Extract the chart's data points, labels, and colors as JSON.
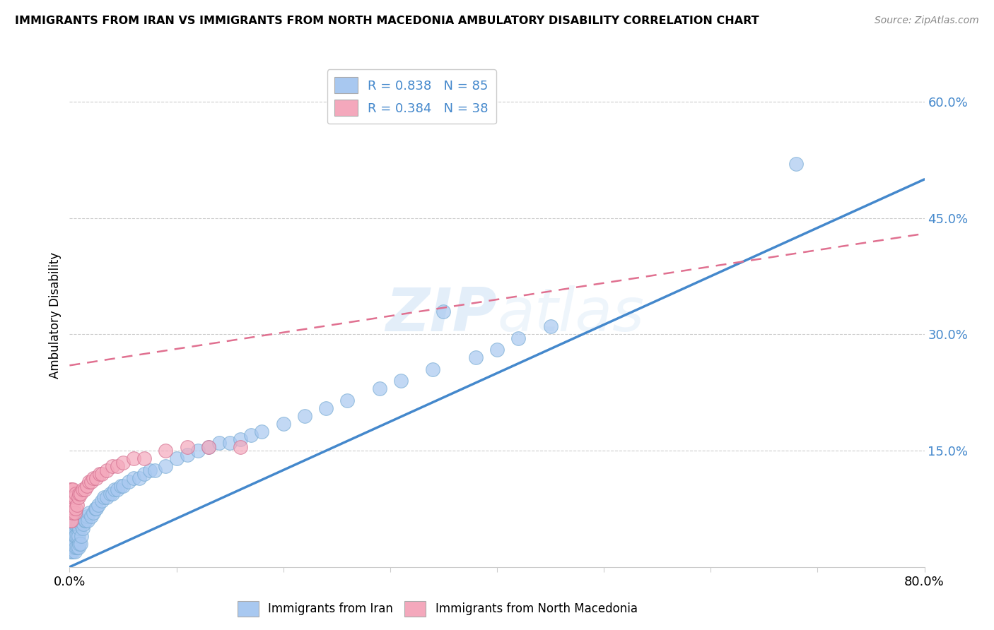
{
  "title": "IMMIGRANTS FROM IRAN VS IMMIGRANTS FROM NORTH MACEDONIA AMBULATORY DISABILITY CORRELATION CHART",
  "source": "Source: ZipAtlas.com",
  "ylabel": "Ambulatory Disability",
  "xlim": [
    0.0,
    0.8
  ],
  "ylim": [
    0.0,
    0.65
  ],
  "xticks": [
    0.0,
    0.1,
    0.2,
    0.3,
    0.4,
    0.5,
    0.6,
    0.7,
    0.8
  ],
  "ytick_right_labels": [
    "15.0%",
    "30.0%",
    "45.0%",
    "60.0%"
  ],
  "ytick_right_vals": [
    0.15,
    0.3,
    0.45,
    0.6
  ],
  "iran_color": "#a8c8f0",
  "iran_edge_color": "#7aadd4",
  "iran_line_color": "#4488cc",
  "north_mac_color": "#f4a8bc",
  "north_mac_edge_color": "#d47090",
  "north_mac_line_color": "#e07090",
  "R_iran": 0.838,
  "N_iran": 85,
  "R_north_mac": 0.384,
  "N_north_mac": 38,
  "watermark": "ZIPatlas",
  "iran_line_x0": 0.0,
  "iran_line_y0": 0.0,
  "iran_line_x1": 0.8,
  "iran_line_y1": 0.5,
  "north_mac_line_x0": 0.0,
  "north_mac_line_y0": 0.26,
  "north_mac_line_x1": 0.8,
  "north_mac_line_y1": 0.43,
  "iran_scatter_x": [
    0.001,
    0.001,
    0.001,
    0.001,
    0.002,
    0.002,
    0.002,
    0.002,
    0.002,
    0.003,
    0.003,
    0.003,
    0.003,
    0.004,
    0.004,
    0.004,
    0.004,
    0.005,
    0.005,
    0.005,
    0.005,
    0.006,
    0.006,
    0.006,
    0.007,
    0.007,
    0.007,
    0.008,
    0.008,
    0.008,
    0.009,
    0.009,
    0.01,
    0.01,
    0.011,
    0.012,
    0.013,
    0.014,
    0.015,
    0.016,
    0.017,
    0.018,
    0.02,
    0.022,
    0.024,
    0.025,
    0.027,
    0.03,
    0.032,
    0.035,
    0.038,
    0.04,
    0.042,
    0.045,
    0.048,
    0.05,
    0.055,
    0.06,
    0.065,
    0.07,
    0.075,
    0.08,
    0.09,
    0.1,
    0.11,
    0.12,
    0.13,
    0.14,
    0.15,
    0.16,
    0.17,
    0.18,
    0.2,
    0.22,
    0.24,
    0.26,
    0.29,
    0.31,
    0.34,
    0.38,
    0.4,
    0.42,
    0.45,
    0.35,
    0.68
  ],
  "iran_scatter_y": [
    0.02,
    0.03,
    0.04,
    0.055,
    0.02,
    0.03,
    0.04,
    0.055,
    0.07,
    0.02,
    0.03,
    0.04,
    0.055,
    0.025,
    0.035,
    0.045,
    0.06,
    0.02,
    0.03,
    0.04,
    0.055,
    0.025,
    0.04,
    0.055,
    0.025,
    0.04,
    0.055,
    0.025,
    0.04,
    0.055,
    0.03,
    0.05,
    0.03,
    0.055,
    0.04,
    0.05,
    0.055,
    0.06,
    0.06,
    0.065,
    0.06,
    0.07,
    0.065,
    0.07,
    0.075,
    0.075,
    0.08,
    0.085,
    0.09,
    0.09,
    0.095,
    0.095,
    0.1,
    0.1,
    0.105,
    0.105,
    0.11,
    0.115,
    0.115,
    0.12,
    0.125,
    0.125,
    0.13,
    0.14,
    0.145,
    0.15,
    0.155,
    0.16,
    0.16,
    0.165,
    0.17,
    0.175,
    0.185,
    0.195,
    0.205,
    0.215,
    0.23,
    0.24,
    0.255,
    0.27,
    0.28,
    0.295,
    0.31,
    0.33,
    0.52
  ],
  "north_mac_scatter_x": [
    0.001,
    0.001,
    0.001,
    0.002,
    0.002,
    0.002,
    0.003,
    0.003,
    0.003,
    0.004,
    0.004,
    0.005,
    0.005,
    0.006,
    0.006,
    0.007,
    0.008,
    0.009,
    0.01,
    0.012,
    0.014,
    0.016,
    0.018,
    0.02,
    0.022,
    0.025,
    0.028,
    0.03,
    0.035,
    0.04,
    0.045,
    0.05,
    0.06,
    0.07,
    0.09,
    0.11,
    0.13,
    0.16
  ],
  "north_mac_scatter_y": [
    0.06,
    0.08,
    0.1,
    0.06,
    0.08,
    0.1,
    0.07,
    0.085,
    0.1,
    0.075,
    0.09,
    0.07,
    0.09,
    0.075,
    0.095,
    0.08,
    0.09,
    0.095,
    0.095,
    0.1,
    0.1,
    0.105,
    0.11,
    0.11,
    0.115,
    0.115,
    0.12,
    0.12,
    0.125,
    0.13,
    0.13,
    0.135,
    0.14,
    0.14,
    0.15,
    0.155,
    0.155,
    0.155
  ]
}
